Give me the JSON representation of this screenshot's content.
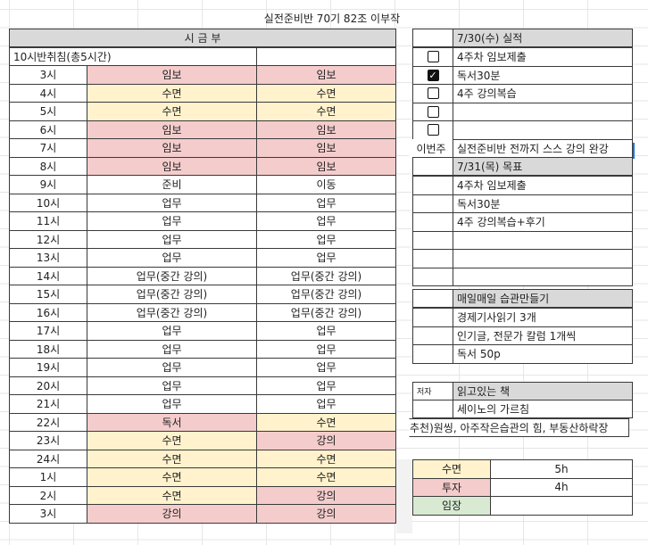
{
  "title": "실전준비반 70기 82조 이부작",
  "schedule": {
    "header": "시 금 부",
    "subheader": "10시반취침(총5시간)",
    "rows": [
      {
        "hour": "3시",
        "a": "임보",
        "b": "임보",
        "ca": "pink",
        "cb": "pink"
      },
      {
        "hour": "4시",
        "a": "수면",
        "b": "수면",
        "ca": "yellow",
        "cb": "yellow"
      },
      {
        "hour": "5시",
        "a": "수면",
        "b": "수면",
        "ca": "yellow",
        "cb": "yellow"
      },
      {
        "hour": "6시",
        "a": "임보",
        "b": "임보",
        "ca": "pink",
        "cb": "pink"
      },
      {
        "hour": "7시",
        "a": "임보",
        "b": "임보",
        "ca": "pink",
        "cb": "pink"
      },
      {
        "hour": "8시",
        "a": "임보",
        "b": "임보",
        "ca": "pink",
        "cb": "pink"
      },
      {
        "hour": "9시",
        "a": "준비",
        "b": "이동",
        "ca": "",
        "cb": ""
      },
      {
        "hour": "10시",
        "a": "업무",
        "b": "업무",
        "ca": "",
        "cb": ""
      },
      {
        "hour": "11시",
        "a": "업무",
        "b": "업무",
        "ca": "",
        "cb": ""
      },
      {
        "hour": "12시",
        "a": "업무",
        "b": "업무",
        "ca": "",
        "cb": ""
      },
      {
        "hour": "13시",
        "a": "업무",
        "b": "업무",
        "ca": "",
        "cb": ""
      },
      {
        "hour": "14시",
        "a": "업무(중간 강의)",
        "b": "업무(중간 강의)",
        "ca": "",
        "cb": ""
      },
      {
        "hour": "15시",
        "a": "업무(중간 강의)",
        "b": "업무(중간 강의)",
        "ca": "",
        "cb": ""
      },
      {
        "hour": "16시",
        "a": "업무(중간 강의)",
        "b": "업무(중간 강의)",
        "ca": "",
        "cb": ""
      },
      {
        "hour": "17시",
        "a": "업무",
        "b": "업무",
        "ca": "",
        "cb": ""
      },
      {
        "hour": "18시",
        "a": "업무",
        "b": "업무",
        "ca": "",
        "cb": ""
      },
      {
        "hour": "19시",
        "a": "업무",
        "b": "업무",
        "ca": "",
        "cb": ""
      },
      {
        "hour": "20시",
        "a": "업무",
        "b": "업무",
        "ca": "",
        "cb": ""
      },
      {
        "hour": "21시",
        "a": "업무",
        "b": "업무",
        "ca": "",
        "cb": ""
      },
      {
        "hour": "22시",
        "a": "독서",
        "b": "수면",
        "ca": "pink",
        "cb": "yellow"
      },
      {
        "hour": "23시",
        "a": "수면",
        "b": "강의",
        "ca": "yellow",
        "cb": "pink"
      },
      {
        "hour": "24시",
        "a": "수면",
        "b": "수면",
        "ca": "yellow",
        "cb": "yellow"
      },
      {
        "hour": "1시",
        "a": "수면",
        "b": "수면",
        "ca": "yellow",
        "cb": "yellow"
      },
      {
        "hour": "2시",
        "a": "수면",
        "b": "강의",
        "ca": "yellow",
        "cb": "pink"
      },
      {
        "hour": "3시",
        "a": "강의",
        "b": "강의",
        "ca": "pink",
        "cb": "pink"
      }
    ]
  },
  "results": {
    "header": "7/30(수) 실적",
    "items": [
      {
        "label": "4주차 임보제출",
        "checked": false
      },
      {
        "label": "독서30분",
        "checked": true
      },
      {
        "label": "4주 강의복습",
        "checked": false
      },
      {
        "label": "",
        "checked": false
      },
      {
        "label": "",
        "checked": false
      }
    ],
    "check_mark": "✓",
    "this_week_label": "이번주",
    "this_week_value": "실전준비반 전까지 스스 강의 완강"
  },
  "goals": {
    "header": "7/31(목) 목표",
    "items": [
      "4주차 임보제출",
      "독서30분",
      "4주 강의복습+후기",
      "",
      "",
      ""
    ]
  },
  "habits": {
    "header": "매일매일 습관만들기",
    "items": [
      "경제기사읽기 3개",
      "인기글, 전문가 칼럼 1개씩",
      "독서 50p"
    ]
  },
  "reading": {
    "author_label": "저자",
    "header": "읽고있는 책",
    "book": "세이노의 가르침",
    "recommended": "추천)원씽, 아주작은습관의 힘, 부동산하락장"
  },
  "summary": [
    {
      "label": "수면",
      "value": "5h",
      "color": "yellow"
    },
    {
      "label": "투자",
      "value": "4h",
      "color": "pink"
    },
    {
      "label": "임장",
      "value": "",
      "color": "green"
    }
  ]
}
